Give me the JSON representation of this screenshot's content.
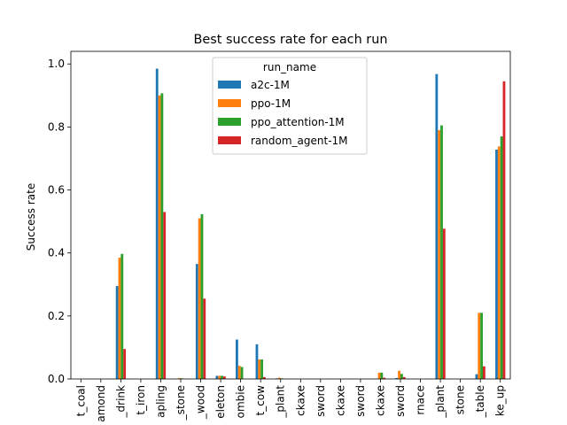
{
  "chart_data": {
    "type": "bar",
    "title": "Best success rate for each run",
    "xlabel": "",
    "ylabel": "Success rate",
    "ylim": [
      0,
      1.04
    ],
    "yticks": [
      0.0,
      0.2,
      0.4,
      0.6,
      0.8,
      1.0
    ],
    "ytick_labels": [
      "0.0",
      "0.2",
      "0.4",
      "0.6",
      "0.8",
      "1.0"
    ],
    "grid": false,
    "legend": {
      "title": "run_name",
      "placement": "top-center"
    },
    "categories": [
      "t_coal",
      "amond",
      "_drink",
      "t_iron",
      "apling",
      "_stone",
      "_wood",
      "eleton",
      "ombie",
      "t_cow",
      "_plant",
      "ckaxe",
      "sword",
      "ckaxe",
      "sword",
      "ckaxe",
      "sword",
      "rnace",
      "_plant",
      "stone",
      "_table",
      "ke_up"
    ],
    "series": [
      {
        "name": "a2c-1M",
        "color": "#1f77b4",
        "values": [
          0,
          0,
          0.295,
          0,
          0.985,
          0.001,
          0.365,
          0.01,
          0.125,
          0.11,
          0.002,
          0,
          0,
          0,
          0,
          0.001,
          0.003,
          0,
          0.968,
          0,
          0.015,
          0.728
        ]
      },
      {
        "name": "ppo-1M",
        "color": "#ff7f0e",
        "values": [
          0,
          0,
          0.385,
          0,
          0.9,
          0.003,
          0.51,
          0.01,
          0.042,
          0.062,
          0.004,
          0,
          0,
          0,
          0,
          0.02,
          0.026,
          0,
          0.79,
          0,
          0.21,
          0.738
        ]
      },
      {
        "name": "ppo_attention-1M",
        "color": "#2ca02c",
        "values": [
          0,
          0,
          0.397,
          0,
          0.907,
          0.002,
          0.523,
          0.01,
          0.038,
          0.062,
          0.002,
          0,
          0,
          0,
          0,
          0.02,
          0.016,
          0,
          0.805,
          0,
          0.21,
          0.77
        ]
      },
      {
        "name": "random_agent-1M",
        "color": "#d62728",
        "values": [
          0,
          0,
          0.095,
          0,
          0.53,
          0,
          0.255,
          0.008,
          0,
          0.006,
          0,
          0,
          0,
          0,
          0,
          0.004,
          0.006,
          0,
          0.477,
          0,
          0.04,
          0.945
        ]
      }
    ]
  }
}
